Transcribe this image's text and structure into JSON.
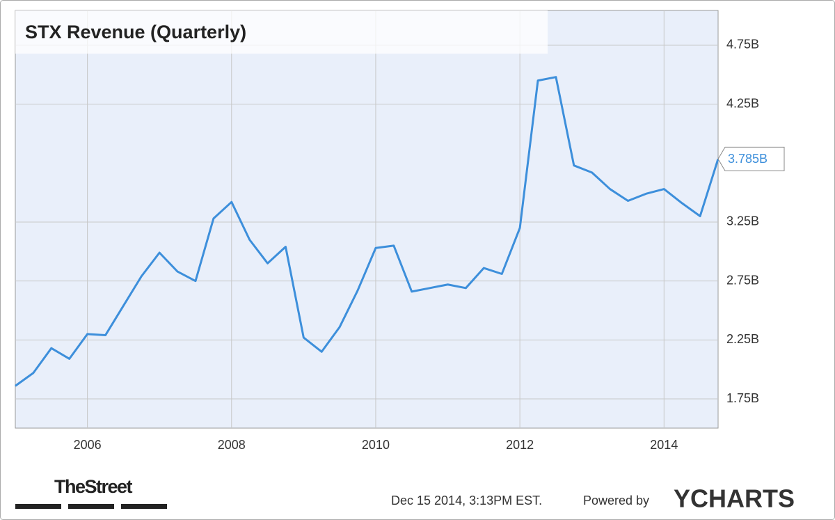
{
  "chart_data": {
    "type": "line",
    "title": "STX Revenue (Quarterly)",
    "x": [
      2005,
      2005.25,
      2005.5,
      2005.75,
      2006,
      2006.25,
      2006.5,
      2006.75,
      2007,
      2007.25,
      2007.5,
      2007.75,
      2008,
      2008.25,
      2008.5,
      2008.75,
      2009,
      2009.25,
      2009.5,
      2009.75,
      2010,
      2010.25,
      2010.5,
      2010.75,
      2011,
      2011.25,
      2011.5,
      2011.75,
      2012,
      2012.25,
      2012.5,
      2012.75,
      2013,
      2013.25,
      2013.5,
      2013.75,
      2014,
      2014.25,
      2014.5,
      2014.75
    ],
    "series": [
      {
        "color": "#3d8fdb",
        "values": [
          1.86,
          1.97,
          2.18,
          2.09,
          2.3,
          2.29,
          2.54,
          2.79,
          2.99,
          2.83,
          2.75,
          3.28,
          3.42,
          3.1,
          2.9,
          3.04,
          2.27,
          2.15,
          2.36,
          2.67,
          3.03,
          3.05,
          2.66,
          2.69,
          2.72,
          2.69,
          2.86,
          2.81,
          3.2,
          4.45,
          4.48,
          3.73,
          3.67,
          3.53,
          3.43,
          3.49,
          3.53,
          3.41,
          3.3,
          3.785
        ],
        "value_labels": [
          null,
          null,
          null,
          null,
          null,
          null,
          null,
          null,
          null,
          null,
          null,
          null,
          null,
          null,
          null,
          null,
          null,
          null,
          null,
          null,
          null,
          null,
          null,
          null,
          null,
          null,
          null,
          null,
          null,
          null,
          null,
          null,
          null,
          null,
          null,
          null,
          null,
          null,
          null,
          "3.785B"
        ]
      }
    ],
    "xlim": [
      2005,
      2014.75
    ],
    "xticks": [
      2006,
      2008,
      2010,
      2012,
      2014
    ],
    "ylim": [
      1.502,
      5.045
    ],
    "yticks": [
      {
        "value": 1.75,
        "label": "1.75B"
      },
      {
        "value": 2.25,
        "label": "2.25B"
      },
      {
        "value": 2.75,
        "label": "2.75B"
      },
      {
        "value": 3.25,
        "label": "3.25B"
      },
      {
        "value": 4.25,
        "label": "4.25B"
      },
      {
        "value": 4.75,
        "label": "4.75B"
      }
    ],
    "grid": true
  },
  "footer": {
    "brand": "TheStreet",
    "timestamp": "Dec 15 2014, 3:13PM EST.",
    "powered": "Powered by",
    "provider": "YCHARTS"
  }
}
